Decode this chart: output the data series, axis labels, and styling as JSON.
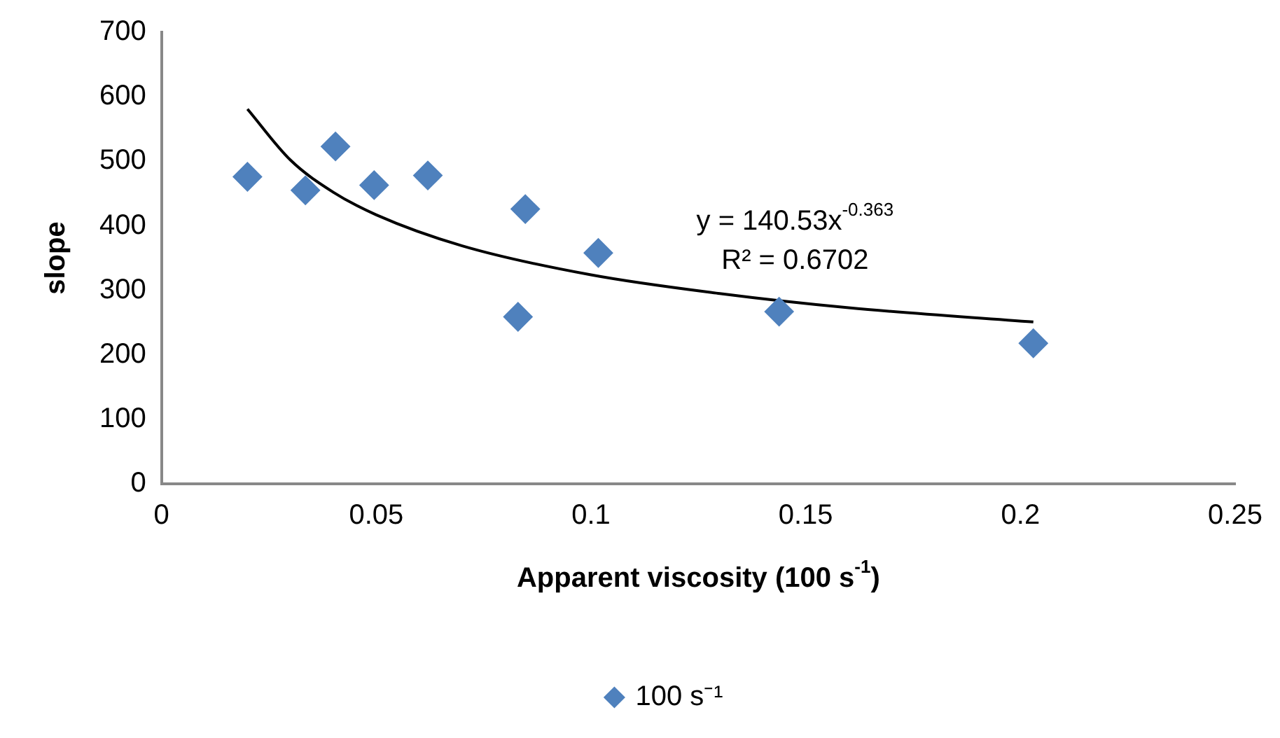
{
  "chart_data": {
    "type": "scatter",
    "xlabel": "Apparent viscosity (100 s$^{-1}$)",
    "ylabel": "slope",
    "xlim": [
      0,
      0.25
    ],
    "xticks": [
      0,
      0.05,
      0.1,
      0.15,
      0.2,
      0.25
    ],
    "ylim": [
      0,
      700
    ],
    "yticks": [
      0,
      100,
      200,
      300,
      400,
      500,
      600,
      700
    ],
    "grid": false,
    "legend": "bottom",
    "annotations": [
      "y = 140.53x$^{-0.363}$",
      "R² = 0.6702"
    ],
    "series": [
      {
        "name": "100 s⁻¹",
        "color": "#4f81bd",
        "marker": "diamond",
        "x": [
          0.02,
          0.0335,
          0.0405,
          0.0495,
          0.062,
          0.0847,
          0.083,
          0.1017,
          0.1438,
          0.203
        ],
        "values": [
          476,
          455,
          523,
          463,
          478,
          426,
          259,
          358,
          267,
          218
        ]
      },
      {
        "type": "line",
        "color": "#000000",
        "marker": "none",
        "x": [
          0.02,
          0.03,
          0.04,
          0.05,
          0.07,
          0.1,
          0.13,
          0.16,
          0.203
        ],
        "values": [
          581,
          502,
          452,
          417,
          369,
          324,
          295,
          273,
          251
        ]
      }
    ]
  }
}
